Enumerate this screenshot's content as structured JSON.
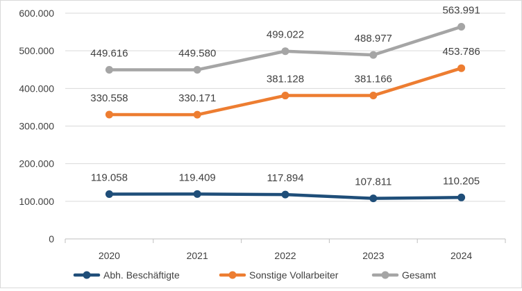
{
  "chart_data": {
    "type": "line",
    "categories": [
      "2020",
      "2021",
      "2022",
      "2023",
      "2024"
    ],
    "y_ticks": [
      "0",
      "100.000",
      "200.000",
      "300.000",
      "400.000",
      "500.000",
      "600.000"
    ],
    "ylim": [
      0,
      600000
    ],
    "grid": true,
    "legend_position": "bottom",
    "series": [
      {
        "name": "Abh. Beschäftigte",
        "color": "#1f4e79",
        "values": [
          119058,
          119409,
          117894,
          107811,
          110205
        ],
        "labels": [
          "119.058",
          "119.409",
          "117.894",
          "107.811",
          "110.205"
        ]
      },
      {
        "name": "Sonstige Vollarbeiter",
        "color": "#ed7d31",
        "values": [
          330558,
          330171,
          381128,
          381166,
          453786
        ],
        "labels": [
          "330.558",
          "330.171",
          "381.128",
          "381.166",
          "453.786"
        ]
      },
      {
        "name": "Gesamt",
        "color": "#a5a5a5",
        "values": [
          449616,
          449580,
          499022,
          488977,
          563991
        ],
        "labels": [
          "449.616",
          "449.580",
          "499.022",
          "488.977",
          "563.991"
        ]
      }
    ]
  }
}
